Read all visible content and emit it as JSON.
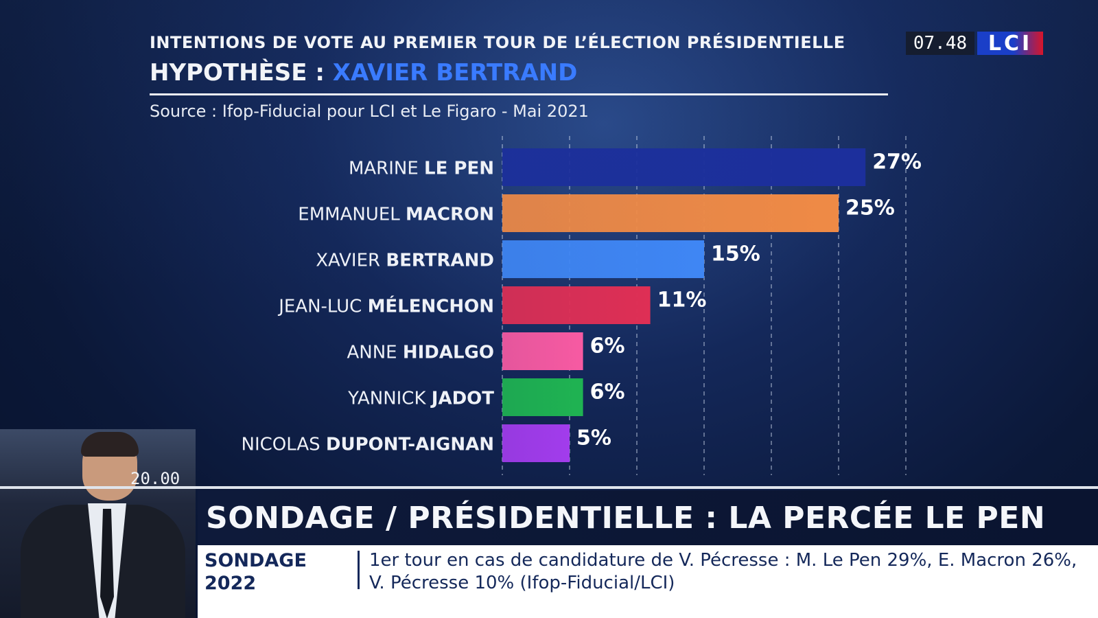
{
  "header": {
    "title": "INTENTIONS DE VOTE AU PREMIER TOUR DE L’ÉLECTION PRÉSIDENTIELLE",
    "hypothesis_label": "HYPOTHÈSE :",
    "hypothesis_name": "XAVIER BERTRAND",
    "source": "Source : Ifop-Fiducial pour LCI et Le Figaro - Mai 2021"
  },
  "channel": {
    "clock": "07.48",
    "logo": "LCI"
  },
  "chart_data": {
    "type": "bar",
    "orientation": "horizontal",
    "title": "INTENTIONS DE VOTE AU PREMIER TOUR DE L’ÉLECTION PRÉSIDENTIELLE",
    "categories": [
      {
        "first": "MARINE",
        "last": "LE PEN"
      },
      {
        "first": "EMMANUEL",
        "last": "MACRON"
      },
      {
        "first": "XAVIER",
        "last": "BERTRAND"
      },
      {
        "first": "JEAN-LUC",
        "last": "MÉLENCHON"
      },
      {
        "first": "ANNE",
        "last": "HIDALGO"
      },
      {
        "first": "YANNICK",
        "last": "JADOT"
      },
      {
        "first": "NICOLAS",
        "last": "DUPONT-AIGNAN"
      }
    ],
    "values": [
      27,
      25,
      15,
      11,
      6,
      6,
      5
    ],
    "value_labels": [
      "27%",
      "25%",
      "15%",
      "11%",
      "6%",
      "6%",
      "5%"
    ],
    "colors": [
      "#1c2f9c",
      "#ef8a46",
      "#3f86f4",
      "#de2f55",
      "#f75aa2",
      "#1fb352",
      "#a23cec"
    ],
    "xlim": [
      0,
      30
    ],
    "grid": true,
    "grid_style": "dashed vertical every 5%"
  },
  "lower_third": {
    "time": "20.00",
    "headline": "SONDAGE / PRÉSIDENTIELLE : LA PERCÉE LE PEN",
    "tag_line1": "SONDAGE",
    "tag_line2": "2022",
    "ticker_text": "1er tour en cas de candidature de V. Pécresse : M. Le Pen 29%, E. Macron 26%, V. Pécresse 10% (Ifop-Fiducial/LCI)"
  }
}
